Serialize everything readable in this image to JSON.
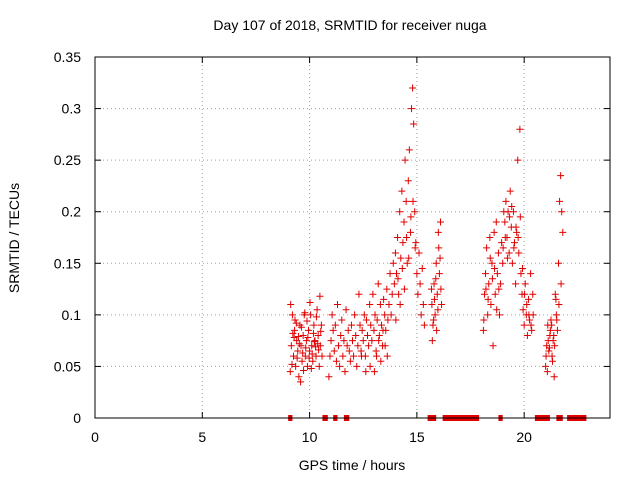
{
  "chart_data": {
    "type": "scatter",
    "title": "Day 107 of 2018, SRMTID for receiver nuga",
    "xlabel": "GPS time / hours",
    "ylabel": "SRMTID / TECUs",
    "xlim": [
      0,
      24
    ],
    "ylim": [
      0,
      0.35
    ],
    "x_ticks": [
      0,
      5,
      10,
      15,
      20
    ],
    "x_tick_labels": [
      "0",
      "5",
      "10",
      "15",
      "20"
    ],
    "y_ticks": [
      0,
      0.05,
      0.1,
      0.15,
      0.2,
      0.25,
      0.3,
      0.35
    ],
    "y_tick_labels": [
      "0",
      "0.05",
      "0.1",
      "0.15",
      "0.2",
      "0.25",
      "0.3",
      "0.35"
    ],
    "grid": true,
    "marker": "+",
    "color": "#e00000",
    "series": [
      {
        "name": "SRMTID",
        "points": [
          [
            9.1,
            0.045
          ],
          [
            9.15,
            0.07
          ],
          [
            9.2,
            0.1
          ],
          [
            9.25,
            0.06
          ],
          [
            9.3,
            0.085
          ],
          [
            9.35,
            0.05
          ],
          [
            9.4,
            0.075
          ],
          [
            9.45,
            0.065
          ],
          [
            9.5,
            0.04
          ],
          [
            9.55,
            0.09
          ],
          [
            9.6,
            0.07
          ],
          [
            9.65,
            0.055
          ],
          [
            9.7,
            0.08
          ],
          [
            9.75,
            0.1
          ],
          [
            9.8,
            0.06
          ],
          [
            9.85,
            0.075
          ],
          [
            9.9,
            0.05
          ],
          [
            9.95,
            0.085
          ],
          [
            10.0,
            0.065
          ],
          [
            10.05,
            0.1
          ],
          [
            10.1,
            0.07
          ],
          [
            10.15,
            0.055
          ],
          [
            10.2,
            0.09
          ],
          [
            10.25,
            0.075
          ],
          [
            10.3,
            0.06
          ],
          [
            10.35,
            0.105
          ],
          [
            10.4,
            0.08
          ],
          [
            10.45,
            0.05
          ],
          [
            10.5,
            0.07
          ],
          [
            10.55,
            0.09
          ],
          [
            9.12,
            0.11
          ],
          [
            9.22,
            0.082
          ],
          [
            9.32,
            0.095
          ],
          [
            9.42,
            0.058
          ],
          [
            9.52,
            0.072
          ],
          [
            9.62,
            0.088
          ],
          [
            9.72,
            0.046
          ],
          [
            9.82,
            0.068
          ],
          [
            9.92,
            0.078
          ],
          [
            10.02,
            0.112
          ],
          [
            10.12,
            0.062
          ],
          [
            10.22,
            0.074
          ],
          [
            10.32,
            0.098
          ],
          [
            10.42,
            0.066
          ],
          [
            10.52,
            0.084
          ],
          [
            9.18,
            0.052
          ],
          [
            9.38,
            0.092
          ],
          [
            9.58,
            0.035
          ],
          [
            9.78,
            0.102
          ],
          [
            9.98,
            0.058
          ],
          [
            10.18,
            0.082
          ],
          [
            10.38,
            0.072
          ],
          [
            10.48,
            0.118
          ],
          [
            9.48,
            0.079
          ],
          [
            9.68,
            0.063
          ],
          [
            9.88,
            0.094
          ],
          [
            10.08,
            0.048
          ],
          [
            10.28,
            0.069
          ],
          [
            10.58,
            0.06
          ],
          [
            9.28,
            0.078
          ],
          [
            10.9,
            0.04
          ],
          [
            10.95,
            0.06
          ],
          [
            11.0,
            0.075
          ],
          [
            11.05,
            0.1
          ],
          [
            11.1,
            0.085
          ],
          [
            11.15,
            0.065
          ],
          [
            11.2,
            0.09
          ],
          [
            11.25,
            0.055
          ],
          [
            11.3,
            0.11
          ],
          [
            11.35,
            0.07
          ],
          [
            11.4,
            0.05
          ],
          [
            11.45,
            0.08
          ],
          [
            11.5,
            0.095
          ],
          [
            11.55,
            0.06
          ],
          [
            11.6,
            0.075
          ],
          [
            11.65,
            0.045
          ],
          [
            11.7,
            0.105
          ],
          [
            11.75,
            0.07
          ],
          [
            11.8,
            0.085
          ],
          [
            11.85,
            0.065
          ],
          [
            11.9,
            0.055
          ],
          [
            11.95,
            0.09
          ],
          [
            12.0,
            0.075
          ],
          [
            12.05,
            0.06
          ],
          [
            12.1,
            0.1
          ],
          [
            12.15,
            0.08
          ],
          [
            12.2,
            0.05
          ],
          [
            12.25,
            0.07
          ],
          [
            12.3,
            0.12
          ],
          [
            12.35,
            0.09
          ],
          [
            12.4,
            0.065
          ],
          [
            12.45,
            0.085
          ],
          [
            12.5,
            0.075
          ],
          [
            12.55,
            0.1
          ],
          [
            12.6,
            0.06
          ],
          [
            12.65,
            0.095
          ],
          [
            12.7,
            0.08
          ],
          [
            12.75,
            0.07
          ],
          [
            12.8,
            0.11
          ],
          [
            12.85,
            0.09
          ],
          [
            12.9,
            0.075
          ],
          [
            12.95,
            0.12
          ],
          [
            13.0,
            0.085
          ],
          [
            13.05,
            0.1
          ],
          [
            13.1,
            0.065
          ],
          [
            13.15,
            0.095
          ],
          [
            13.2,
            0.13
          ],
          [
            13.25,
            0.08
          ],
          [
            13.3,
            0.11
          ],
          [
            13.35,
            0.09
          ],
          [
            13.4,
            0.07
          ],
          [
            13.45,
            0.115
          ],
          [
            13.5,
            0.1
          ],
          [
            13.55,
            0.085
          ],
          [
            13.6,
            0.125
          ],
          [
            13.65,
            0.095
          ],
          [
            13.7,
            0.11
          ],
          [
            13.75,
            0.14
          ],
          [
            13.8,
            0.1
          ],
          [
            13.85,
            0.12
          ],
          [
            13.9,
            0.15
          ],
          [
            13.95,
            0.13
          ],
          [
            14.0,
            0.16
          ],
          [
            14.05,
            0.14
          ],
          [
            14.1,
            0.175
          ],
          [
            14.15,
            0.12
          ],
          [
            14.2,
            0.2
          ],
          [
            14.25,
            0.155
          ],
          [
            14.3,
            0.22
          ],
          [
            14.35,
            0.17
          ],
          [
            14.4,
            0.19
          ],
          [
            14.45,
            0.25
          ],
          [
            14.5,
            0.21
          ],
          [
            14.55,
            0.15
          ],
          [
            14.6,
            0.23
          ],
          [
            14.65,
            0.26
          ],
          [
            14.7,
            0.18
          ],
          [
            14.75,
            0.3
          ],
          [
            14.8,
            0.32
          ],
          [
            14.85,
            0.285
          ],
          [
            14.9,
            0.2
          ],
          [
            14.95,
            0.17
          ],
          [
            15.0,
            0.14
          ],
          [
            15.05,
            0.12
          ],
          [
            15.1,
            0.16
          ],
          [
            15.15,
            0.13
          ],
          [
            15.2,
            0.1
          ],
          [
            15.25,
            0.145
          ],
          [
            15.3,
            0.11
          ],
          [
            15.35,
            0.09
          ],
          [
            14.02,
            0.095
          ],
          [
            14.12,
            0.135
          ],
          [
            14.22,
            0.11
          ],
          [
            14.32,
            0.145
          ],
          [
            14.42,
            0.125
          ],
          [
            14.52,
            0.175
          ],
          [
            14.62,
            0.155
          ],
          [
            14.72,
            0.195
          ],
          [
            14.82,
            0.21
          ],
          [
            14.92,
            0.165
          ],
          [
            13.02,
            0.045
          ],
          [
            13.12,
            0.06
          ],
          [
            13.22,
            0.075
          ],
          [
            13.32,
            0.055
          ],
          [
            13.42,
            0.085
          ],
          [
            12.82,
            0.05
          ],
          [
            12.62,
            0.045
          ],
          [
            12.42,
            0.06
          ],
          [
            13.52,
            0.07
          ],
          [
            13.62,
            0.06
          ],
          [
            15.7,
            0.11
          ],
          [
            15.75,
            0.09
          ],
          [
            15.8,
            0.13
          ],
          [
            15.85,
            0.1
          ],
          [
            15.9,
            0.15
          ],
          [
            15.95,
            0.12
          ],
          [
            16.0,
            0.18
          ],
          [
            16.05,
            0.14
          ],
          [
            16.1,
            0.19
          ],
          [
            16.15,
            0.11
          ],
          [
            15.72,
            0.075
          ],
          [
            15.82,
            0.115
          ],
          [
            15.92,
            0.085
          ],
          [
            16.02,
            0.165
          ],
          [
            16.12,
            0.125
          ],
          [
            15.78,
            0.095
          ],
          [
            15.88,
            0.135
          ],
          [
            15.98,
            0.105
          ],
          [
            16.08,
            0.155
          ],
          [
            15.68,
            0.125
          ],
          [
            18.1,
            0.085
          ],
          [
            18.15,
            0.12
          ],
          [
            18.2,
            0.14
          ],
          [
            18.25,
            0.165
          ],
          [
            18.3,
            0.1
          ],
          [
            18.35,
            0.13
          ],
          [
            18.4,
            0.175
          ],
          [
            18.45,
            0.11
          ],
          [
            18.5,
            0.15
          ],
          [
            18.55,
            0.07
          ],
          [
            18.6,
            0.18
          ],
          [
            18.65,
            0.12
          ],
          [
            18.7,
            0.19
          ],
          [
            18.75,
            0.14
          ],
          [
            18.8,
            0.16
          ],
          [
            18.85,
            0.1
          ],
          [
            18.9,
            0.13
          ],
          [
            18.95,
            0.17
          ],
          [
            19.0,
            0.15
          ],
          [
            19.05,
            0.2
          ],
          [
            19.1,
            0.19
          ],
          [
            19.15,
            0.21
          ],
          [
            19.2,
            0.175
          ],
          [
            19.25,
            0.2
          ],
          [
            19.3,
            0.16
          ],
          [
            19.35,
            0.22
          ],
          [
            19.4,
            0.185
          ],
          [
            19.45,
            0.15
          ],
          [
            19.5,
            0.2
          ],
          [
            19.55,
            0.17
          ],
          [
            19.6,
            0.13
          ],
          [
            19.65,
            0.18
          ],
          [
            19.7,
            0.25
          ],
          [
            19.75,
            0.16
          ],
          [
            19.8,
            0.28
          ],
          [
            19.85,
            0.14
          ],
          [
            19.9,
            0.12
          ],
          [
            19.95,
            0.105
          ],
          [
            20.0,
            0.09
          ],
          [
            20.05,
            0.13
          ],
          [
            20.1,
            0.1
          ],
          [
            20.15,
            0.08
          ],
          [
            20.2,
            0.115
          ],
          [
            20.25,
            0.095
          ],
          [
            20.3,
            0.14
          ],
          [
            20.35,
            0.085
          ],
          [
            20.4,
            0.12
          ],
          [
            18.12,
            0.095
          ],
          [
            18.22,
            0.125
          ],
          [
            18.32,
            0.115
          ],
          [
            18.42,
            0.155
          ],
          [
            18.52,
            0.135
          ],
          [
            18.62,
            0.145
          ],
          [
            18.72,
            0.105
          ],
          [
            18.82,
            0.125
          ],
          [
            19.02,
            0.165
          ],
          [
            19.12,
            0.175
          ],
          [
            19.22,
            0.155
          ],
          [
            19.32,
            0.195
          ],
          [
            19.42,
            0.205
          ],
          [
            19.52,
            0.165
          ],
          [
            19.62,
            0.185
          ],
          [
            19.72,
            0.175
          ],
          [
            19.82,
            0.195
          ],
          [
            19.92,
            0.145
          ],
          [
            20.02,
            0.12
          ],
          [
            20.12,
            0.11
          ],
          [
            20.22,
            0.1
          ],
          [
            20.32,
            0.09
          ],
          [
            20.42,
            0.1
          ],
          [
            21.0,
            0.05
          ],
          [
            21.05,
            0.07
          ],
          [
            21.1,
            0.09
          ],
          [
            21.15,
            0.065
          ],
          [
            21.2,
            0.08
          ],
          [
            21.25,
            0.095
          ],
          [
            21.3,
            0.06
          ],
          [
            21.35,
            0.075
          ],
          [
            21.4,
            0.04
          ],
          [
            21.45,
            0.12
          ],
          [
            21.5,
            0.1
          ],
          [
            21.55,
            0.085
          ],
          [
            21.6,
            0.15
          ],
          [
            21.65,
            0.21
          ],
          [
            21.7,
            0.235
          ],
          [
            21.75,
            0.2
          ],
          [
            21.8,
            0.18
          ],
          [
            21.02,
            0.06
          ],
          [
            21.12,
            0.075
          ],
          [
            21.22,
            0.085
          ],
          [
            21.32,
            0.055
          ],
          [
            21.42,
            0.07
          ],
          [
            21.52,
            0.095
          ],
          [
            21.62,
            0.11
          ],
          [
            21.72,
            0.13
          ],
          [
            21.08,
            0.045
          ],
          [
            21.18,
            0.068
          ],
          [
            21.28,
            0.09
          ],
          [
            21.38,
            0.08
          ],
          [
            21.48,
            0.115
          ]
        ]
      }
    ],
    "zero_value_segments": [
      [
        9.0,
        9.2
      ],
      [
        10.6,
        10.85
      ],
      [
        11.1,
        11.3
      ],
      [
        11.6,
        11.85
      ],
      [
        15.5,
        15.9
      ],
      [
        16.2,
        17.9
      ],
      [
        18.8,
        19.0
      ],
      [
        20.5,
        21.2
      ],
      [
        21.5,
        21.8
      ],
      [
        22.0,
        22.9
      ]
    ]
  }
}
